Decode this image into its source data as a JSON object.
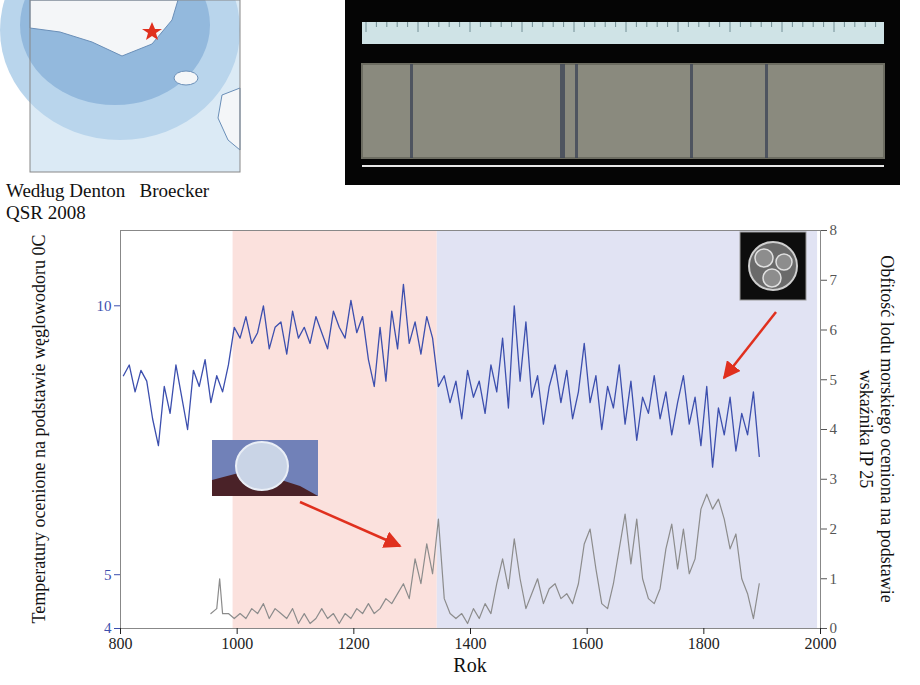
{
  "chart_data": {
    "type": "line",
    "source": [
      "Według Denton   Broecker",
      "QSR 2008"
    ],
    "xlabel": "Rok",
    "ylabel": "Temperatury ocenione na podstawie węglowodoru 0C",
    "y2label": "Obfitość lodu morskiego oceniona na podstawie wskaźnika IP 25",
    "xlim": [
      800,
      2000
    ],
    "xticks": [
      800,
      1000,
      1200,
      1400,
      1600,
      1800,
      2000
    ],
    "ylim": [
      4,
      11.4
    ],
    "yticks": [
      4,
      5,
      10
    ],
    "y2lim": [
      0,
      8
    ],
    "y2ticks": [
      0,
      1,
      2,
      3,
      4,
      5,
      6,
      7,
      8
    ],
    "shaded_periods": [
      {
        "start": 993,
        "end": 1343,
        "color": "#fbe1dd"
      },
      {
        "start": 1343,
        "end": 1995,
        "color": "#e1e3f3"
      }
    ],
    "series": [
      {
        "color": "#3c4fae",
        "x": [
          805,
          815,
          825,
          835,
          845,
          855,
          865,
          875,
          885,
          895,
          905,
          915,
          925,
          935,
          945,
          955,
          965,
          975,
          985,
          995,
          1005,
          1015,
          1025,
          1035,
          1045,
          1055,
          1065,
          1075,
          1085,
          1095,
          1105,
          1115,
          1125,
          1135,
          1145,
          1155,
          1165,
          1175,
          1185,
          1195,
          1205,
          1215,
          1225,
          1235,
          1245,
          1255,
          1265,
          1275,
          1285,
          1295,
          1305,
          1315,
          1325,
          1335,
          1345,
          1355,
          1365,
          1375,
          1385,
          1395,
          1405,
          1415,
          1425,
          1435,
          1445,
          1455,
          1465,
          1475,
          1485,
          1495,
          1505,
          1515,
          1525,
          1535,
          1545,
          1555,
          1565,
          1575,
          1585,
          1595,
          1605,
          1615,
          1625,
          1635,
          1645,
          1655,
          1665,
          1675,
          1685,
          1695,
          1705,
          1715,
          1725,
          1735,
          1745,
          1755,
          1765,
          1775,
          1785,
          1795,
          1805,
          1815,
          1825,
          1835,
          1845,
          1855,
          1865,
          1875,
          1885,
          1895
        ],
        "values": [
          8.7,
          8.9,
          8.4,
          8.8,
          8.6,
          7.9,
          7.4,
          8.5,
          8.0,
          8.9,
          8.3,
          7.7,
          8.8,
          8.5,
          9.0,
          8.2,
          8.7,
          8.4,
          8.9,
          9.6,
          9.4,
          9.8,
          9.3,
          9.5,
          10.0,
          9.2,
          9.6,
          9.7,
          9.1,
          9.9,
          9.4,
          9.6,
          9.3,
          9.8,
          9.5,
          9.2,
          9.9,
          9.6,
          9.4,
          10.1,
          9.5,
          9.8,
          9.0,
          8.5,
          9.6,
          8.6,
          9.9,
          9.2,
          10.4,
          9.3,
          9.7,
          9.1,
          9.8,
          9.4,
          8.5,
          8.7,
          8.2,
          8.6,
          7.9,
          8.8,
          8.3,
          8.6,
          8.0,
          8.9,
          8.4,
          9.4,
          8.1,
          10.0,
          8.6,
          9.7,
          8.3,
          8.7,
          7.8,
          8.5,
          8.9,
          8.2,
          8.8,
          7.9,
          8.4,
          9.3,
          8.2,
          8.7,
          7.7,
          8.5,
          8.1,
          8.9,
          7.8,
          8.6,
          7.5,
          8.3,
          8.0,
          8.7,
          7.9,
          8.4,
          7.6,
          8.2,
          8.7,
          7.8,
          8.3,
          7.4,
          8.5,
          7.0,
          8.1,
          7.6,
          8.3,
          7.3,
          8.0,
          7.6,
          8.4,
          7.2
        ]
      },
      {
        "color": "#8c8c8c",
        "axis": "y2",
        "x": [
          955,
          965,
          970,
          975,
          985,
          995,
          1005,
          1015,
          1025,
          1035,
          1045,
          1055,
          1065,
          1075,
          1085,
          1095,
          1105,
          1115,
          1125,
          1135,
          1145,
          1155,
          1165,
          1175,
          1185,
          1195,
          1205,
          1215,
          1225,
          1235,
          1245,
          1255,
          1265,
          1275,
          1285,
          1295,
          1305,
          1315,
          1325,
          1335,
          1345,
          1355,
          1365,
          1375,
          1385,
          1395,
          1405,
          1415,
          1425,
          1435,
          1445,
          1455,
          1465,
          1475,
          1485,
          1495,
          1505,
          1515,
          1525,
          1535,
          1545,
          1555,
          1565,
          1575,
          1585,
          1595,
          1605,
          1615,
          1625,
          1635,
          1645,
          1655,
          1665,
          1675,
          1685,
          1695,
          1705,
          1715,
          1725,
          1735,
          1745,
          1755,
          1765,
          1775,
          1785,
          1795,
          1805,
          1815,
          1825,
          1835,
          1845,
          1855,
          1865,
          1875,
          1885,
          1895
        ],
        "values": [
          0.3,
          0.4,
          1.0,
          0.3,
          0.3,
          0.2,
          0.3,
          0.2,
          0.4,
          0.3,
          0.5,
          0.2,
          0.4,
          0.3,
          0.2,
          0.4,
          0.1,
          0.3,
          0.1,
          0.2,
          0.4,
          0.2,
          0.3,
          0.1,
          0.3,
          0.2,
          0.4,
          0.3,
          0.5,
          0.3,
          0.4,
          0.6,
          0.5,
          0.7,
          0.9,
          0.6,
          1.4,
          0.9,
          1.7,
          1.1,
          2.2,
          0.6,
          0.3,
          0.2,
          0.3,
          0.1,
          0.4,
          0.2,
          0.5,
          0.3,
          0.9,
          1.4,
          0.8,
          1.8,
          1.0,
          0.4,
          0.7,
          1.0,
          0.5,
          0.8,
          0.9,
          0.6,
          0.7,
          0.5,
          0.9,
          1.7,
          2.0,
          1.2,
          0.5,
          0.4,
          0.9,
          1.6,
          2.3,
          1.3,
          2.2,
          1.0,
          0.6,
          0.5,
          0.8,
          1.6,
          2.1,
          1.2,
          2.0,
          1.1,
          1.4,
          2.4,
          2.7,
          2.4,
          2.6,
          2.2,
          1.6,
          1.9,
          1.0,
          0.7,
          0.2,
          0.9
        ]
      }
    ]
  }
}
